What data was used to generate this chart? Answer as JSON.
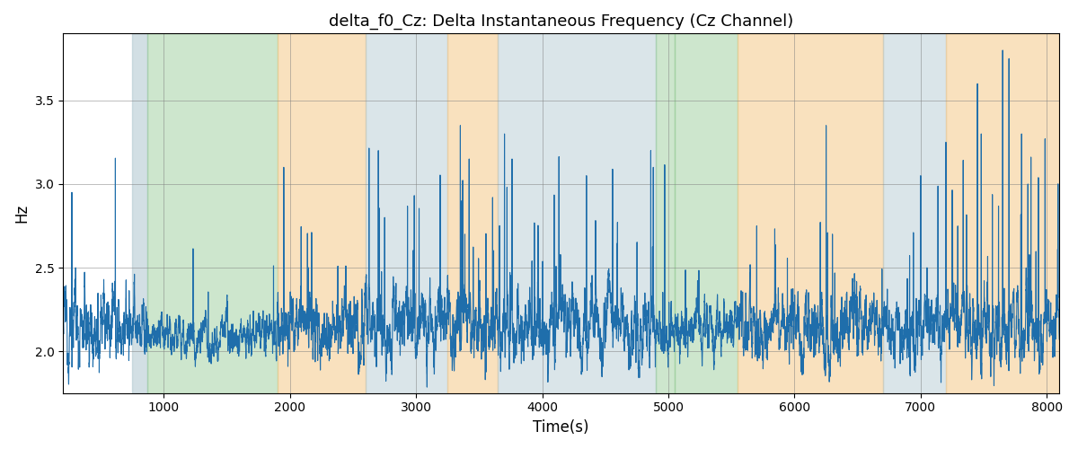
{
  "title": "delta_f0_Cz: Delta Instantaneous Frequency (Cz Channel)",
  "xlabel": "Time(s)",
  "ylabel": "Hz",
  "xlim": [
    200,
    8100
  ],
  "ylim": [
    1.75,
    3.9
  ],
  "yticks": [
    2.0,
    2.5,
    3.0,
    3.5
  ],
  "grid": true,
  "line_color": "#1f6eab",
  "line_width": 0.8,
  "title_fontsize": 13,
  "label_fontsize": 12,
  "figsize": [
    12,
    5
  ],
  "dpi": 100,
  "bands": [
    {
      "start": 750,
      "end": 870,
      "color": "#aec6cf",
      "alpha": 0.55
    },
    {
      "start": 870,
      "end": 1900,
      "color": "#90c990",
      "alpha": 0.45
    },
    {
      "start": 1900,
      "end": 2600,
      "color": "#f5c98a",
      "alpha": 0.55
    },
    {
      "start": 2600,
      "end": 3250,
      "color": "#aec6cf",
      "alpha": 0.45
    },
    {
      "start": 3250,
      "end": 3650,
      "color": "#f5c98a",
      "alpha": 0.55
    },
    {
      "start": 3650,
      "end": 4900,
      "color": "#aec6cf",
      "alpha": 0.45
    },
    {
      "start": 4900,
      "end": 5050,
      "color": "#90c990",
      "alpha": 0.45
    },
    {
      "start": 5050,
      "end": 5550,
      "color": "#90c990",
      "alpha": 0.45
    },
    {
      "start": 5550,
      "end": 6700,
      "color": "#f5c98a",
      "alpha": 0.55
    },
    {
      "start": 6700,
      "end": 7200,
      "color": "#aec6cf",
      "alpha": 0.45
    },
    {
      "start": 7200,
      "end": 8100,
      "color": "#f5c98a",
      "alpha": 0.55
    }
  ]
}
